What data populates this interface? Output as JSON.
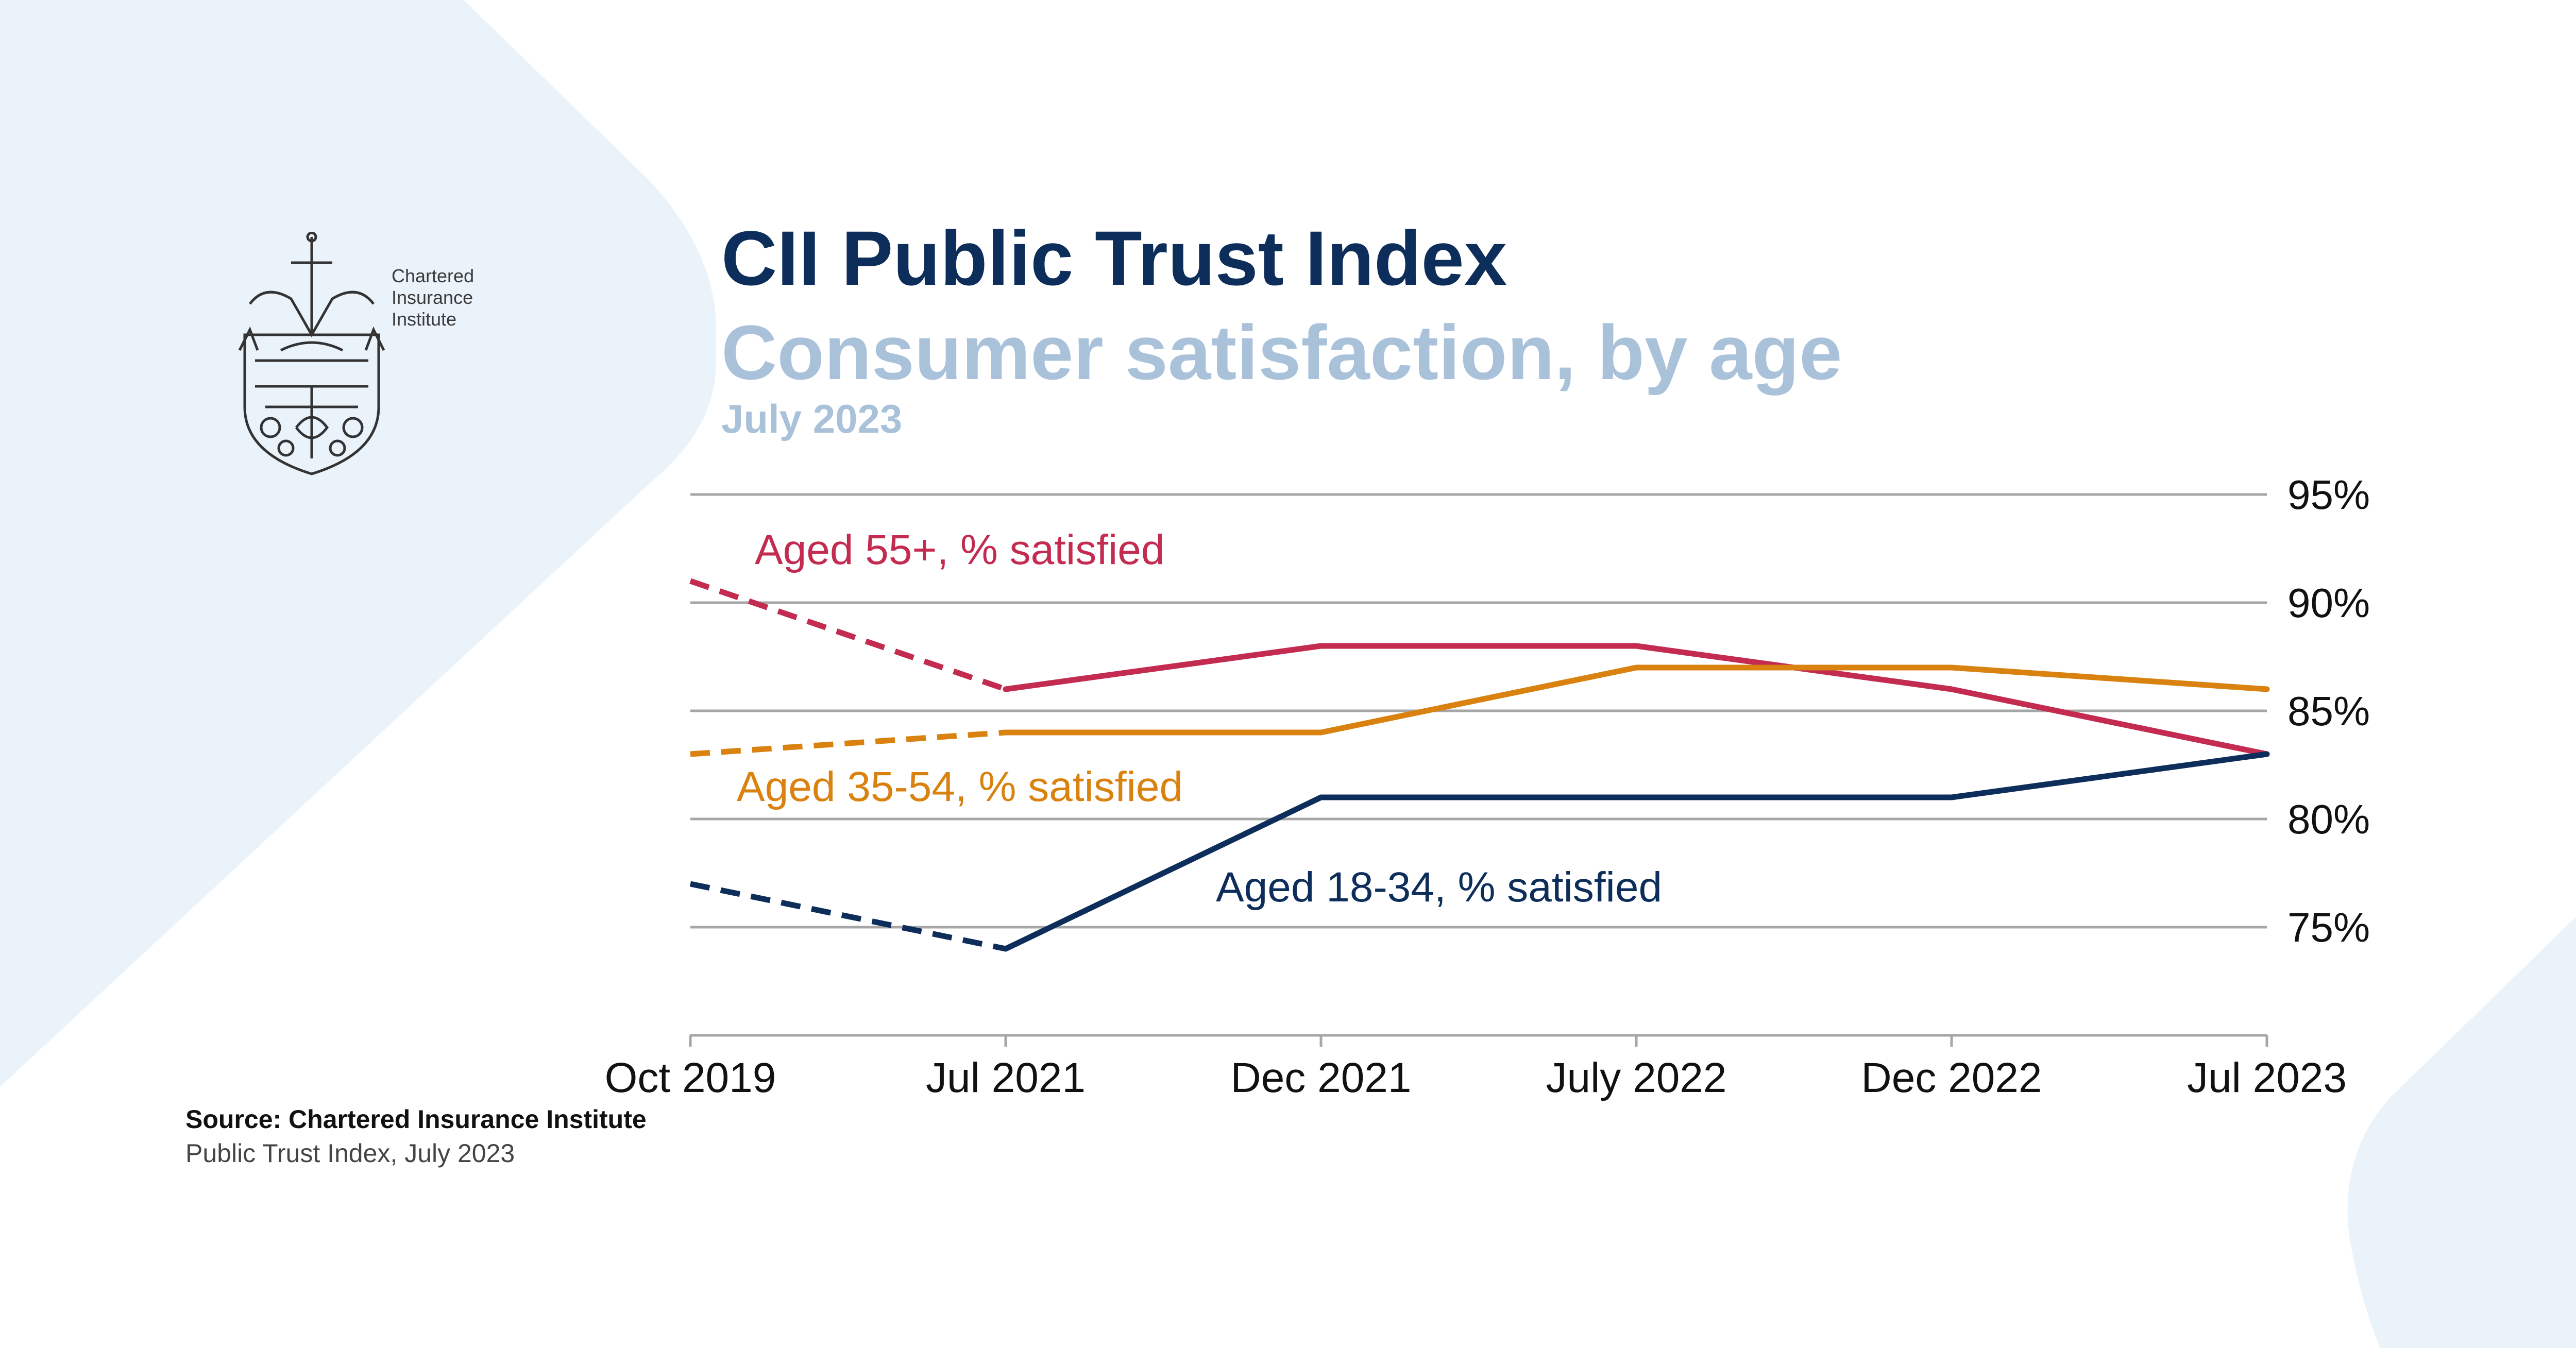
{
  "header": {
    "title": "CII Public Trust Index",
    "subtitle": "Consumer satisfaction, by age",
    "date": "July 2023"
  },
  "logo": {
    "icon": "chartered-insurance-institute-crest-icon",
    "text": "Chartered\nInsurance\nInstitute"
  },
  "source": {
    "line1": "Source: Chartered Insurance Institute",
    "line2": "Public Trust Index, July 2023"
  },
  "colors": {
    "navy": "#0d2d5a",
    "crimson": "#c32b50",
    "orange": "#d9820f",
    "light_blue": "#a9c2da",
    "bg_shape": "#eaf2fa",
    "grid": "#a6a6a6"
  },
  "chart_data": {
    "type": "line",
    "categories": [
      "Oct 2019",
      "Jul 2021",
      "Dec 2021",
      "July 2022",
      "Dec 2022",
      "Jul 2023"
    ],
    "y_ticks": [
      "95%",
      "90%",
      "85%",
      "80%",
      "75%"
    ],
    "ylim": [
      70,
      95
    ],
    "grid": true,
    "note": "First segment (Oct 2019 → Jul 2021) of each series is dashed",
    "series": [
      {
        "name": "Aged 55+, % satisfied",
        "color": "#c32b50",
        "values": [
          91,
          86,
          88,
          88,
          86,
          83
        ]
      },
      {
        "name": "Aged 35-54, % satisfied",
        "color": "#d9820f",
        "values": [
          83,
          84,
          84,
          87,
          87,
          86
        ]
      },
      {
        "name": "Aged 18-34, % satisfied",
        "color": "#0d2d5a",
        "values": [
          77,
          74,
          81,
          81,
          81,
          83
        ]
      }
    ]
  }
}
